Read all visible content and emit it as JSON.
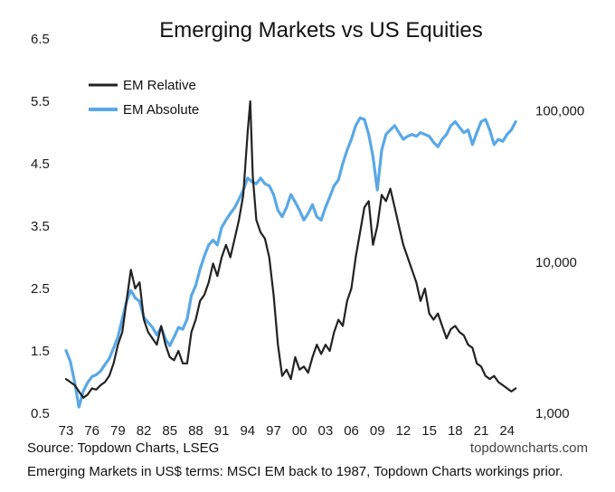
{
  "chart_data": {
    "type": "line",
    "title": "Emerging Markets vs US Equities",
    "xlabel": "",
    "x_ticks": [
      "73",
      "76",
      "79",
      "82",
      "85",
      "88",
      "91",
      "94",
      "97",
      "00",
      "03",
      "06",
      "09",
      "12",
      "15",
      "18",
      "21",
      "24"
    ],
    "x_range": [
      1973,
      2025.5
    ],
    "left_axis": {
      "ticks": [
        "0.5",
        "1.5",
        "2.5",
        "3.5",
        "4.5",
        "5.5",
        "6.5"
      ],
      "range": [
        0.5,
        6.5
      ],
      "scale": "linear"
    },
    "right_axis": {
      "ticks": [
        "1,000",
        "10,000",
        "100,000"
      ],
      "range": [
        1000,
        300000
      ],
      "scale": "log"
    },
    "legend": {
      "position": "top-left"
    },
    "colors": {
      "em_relative": "#222222",
      "em_absolute": "#5aa8e6"
    },
    "series": [
      {
        "name": "EM Relative",
        "axis": "left",
        "x": [
          1973.0,
          1973.5,
          1974.0,
          1974.5,
          1975.0,
          1975.5,
          1976.0,
          1976.5,
          1977.0,
          1977.5,
          1978.0,
          1978.5,
          1979.0,
          1979.5,
          1980.0,
          1980.5,
          1981.0,
          1981.5,
          1982.0,
          1982.5,
          1983.0,
          1983.5,
          1984.0,
          1984.5,
          1985.0,
          1985.5,
          1986.0,
          1986.5,
          1987.0,
          1987.5,
          1988.0,
          1988.5,
          1989.0,
          1989.5,
          1990.0,
          1990.5,
          1991.0,
          1991.5,
          1992.0,
          1992.5,
          1993.0,
          1993.5,
          1994.0,
          1994.3,
          1994.6,
          1995.0,
          1995.5,
          1996.0,
          1996.5,
          1997.0,
          1997.5,
          1998.0,
          1998.5,
          1999.0,
          1999.5,
          2000.0,
          2000.5,
          2001.0,
          2001.5,
          2002.0,
          2002.5,
          2003.0,
          2003.5,
          2004.0,
          2004.5,
          2005.0,
          2005.5,
          2006.0,
          2006.5,
          2007.0,
          2007.5,
          2008.0,
          2008.5,
          2009.0,
          2009.5,
          2010.0,
          2010.5,
          2011.0,
          2011.5,
          2012.0,
          2012.5,
          2013.0,
          2013.5,
          2014.0,
          2014.5,
          2015.0,
          2015.5,
          2016.0,
          2016.5,
          2017.0,
          2017.5,
          2018.0,
          2018.5,
          2019.0,
          2019.5,
          2020.0,
          2020.5,
          2021.0,
          2021.5,
          2022.0,
          2022.5,
          2023.0,
          2023.5,
          2024.0,
          2024.5,
          2025.0
        ],
        "values": [
          1.05,
          1.0,
          0.95,
          0.85,
          0.75,
          0.8,
          0.9,
          0.88,
          0.95,
          1.0,
          1.1,
          1.3,
          1.6,
          1.8,
          2.3,
          2.8,
          2.5,
          2.6,
          2.0,
          1.8,
          1.7,
          1.6,
          1.9,
          1.6,
          1.4,
          1.35,
          1.5,
          1.3,
          1.3,
          1.8,
          2.0,
          2.3,
          2.4,
          2.6,
          2.9,
          2.7,
          3.0,
          3.2,
          3.0,
          3.3,
          3.6,
          4.0,
          5.0,
          5.5,
          4.3,
          3.6,
          3.4,
          3.3,
          3.0,
          2.4,
          1.6,
          1.1,
          1.2,
          1.05,
          1.4,
          1.2,
          1.25,
          1.15,
          1.4,
          1.6,
          1.45,
          1.6,
          1.5,
          1.8,
          2.0,
          1.9,
          2.3,
          2.5,
          3.0,
          3.4,
          3.8,
          3.9,
          3.2,
          3.5,
          4.0,
          3.9,
          4.1,
          3.8,
          3.5,
          3.2,
          3.0,
          2.8,
          2.6,
          2.3,
          2.5,
          2.1,
          2.0,
          2.1,
          1.9,
          1.7,
          1.85,
          1.9,
          1.8,
          1.75,
          1.6,
          1.55,
          1.3,
          1.25,
          1.1,
          1.05,
          1.1,
          1.0,
          0.95,
          0.9,
          0.85,
          0.9
        ]
      },
      {
        "name": "EM Absolute",
        "axis": "right",
        "x": [
          1973.0,
          1973.5,
          1974.0,
          1974.5,
          1975.0,
          1975.5,
          1976.0,
          1976.5,
          1977.0,
          1977.5,
          1978.0,
          1978.5,
          1979.0,
          1979.5,
          1980.0,
          1980.5,
          1981.0,
          1981.5,
          1982.0,
          1982.5,
          1983.0,
          1983.5,
          1984.0,
          1984.5,
          1985.0,
          1985.5,
          1986.0,
          1986.5,
          1987.0,
          1987.5,
          1988.0,
          1988.5,
          1989.0,
          1989.5,
          1990.0,
          1990.5,
          1991.0,
          1991.5,
          1992.0,
          1992.5,
          1993.0,
          1993.5,
          1994.0,
          1994.5,
          1995.0,
          1995.5,
          1996.0,
          1996.5,
          1997.0,
          1997.5,
          1998.0,
          1998.5,
          1999.0,
          1999.5,
          2000.0,
          2000.5,
          2001.0,
          2001.5,
          2002.0,
          2002.5,
          2003.0,
          2003.5,
          2004.0,
          2004.5,
          2005.0,
          2005.5,
          2006.0,
          2006.5,
          2007.0,
          2007.5,
          2008.0,
          2008.5,
          2009.0,
          2009.5,
          2010.0,
          2010.5,
          2011.0,
          2011.5,
          2012.0,
          2012.5,
          2013.0,
          2013.5,
          2014.0,
          2014.5,
          2015.0,
          2015.5,
          2016.0,
          2016.5,
          2017.0,
          2017.5,
          2018.0,
          2018.5,
          2019.0,
          2019.5,
          2020.0,
          2020.5,
          2021.0,
          2021.5,
          2022.0,
          2022.5,
          2023.0,
          2023.5,
          2024.0,
          2024.5,
          2025.0
        ],
        "values": [
          2600,
          2200,
          1600,
          1100,
          1400,
          1600,
          1750,
          1800,
          1900,
          2100,
          2300,
          2700,
          3200,
          4200,
          5500,
          6500,
          5800,
          5500,
          4300,
          4000,
          3700,
          3300,
          3700,
          3100,
          2800,
          3200,
          3700,
          3600,
          4200,
          6000,
          7000,
          9000,
          11000,
          13000,
          14000,
          13000,
          17000,
          19000,
          21000,
          23000,
          26000,
          30000,
          36000,
          34000,
          33000,
          36000,
          33000,
          32000,
          28000,
          22000,
          20000,
          23000,
          28000,
          25000,
          22000,
          19000,
          21000,
          24000,
          20000,
          19000,
          23000,
          27000,
          32000,
          35000,
          45000,
          55000,
          65000,
          80000,
          90000,
          88000,
          70000,
          50000,
          30000,
          55000,
          70000,
          75000,
          80000,
          72000,
          65000,
          68000,
          70000,
          68000,
          72000,
          70000,
          68000,
          62000,
          58000,
          65000,
          70000,
          80000,
          85000,
          78000,
          72000,
          75000,
          60000,
          72000,
          85000,
          88000,
          75000,
          60000,
          65000,
          63000,
          70000,
          75000,
          85000
        ]
      }
    ]
  },
  "footer": {
    "source": "Source: Topdown Charts, LSEG",
    "brand": "topdowncharts.com",
    "note": "Emerging Markets in US$ terms: MSCI EM back to 1987, Topdown Charts workings prior."
  }
}
